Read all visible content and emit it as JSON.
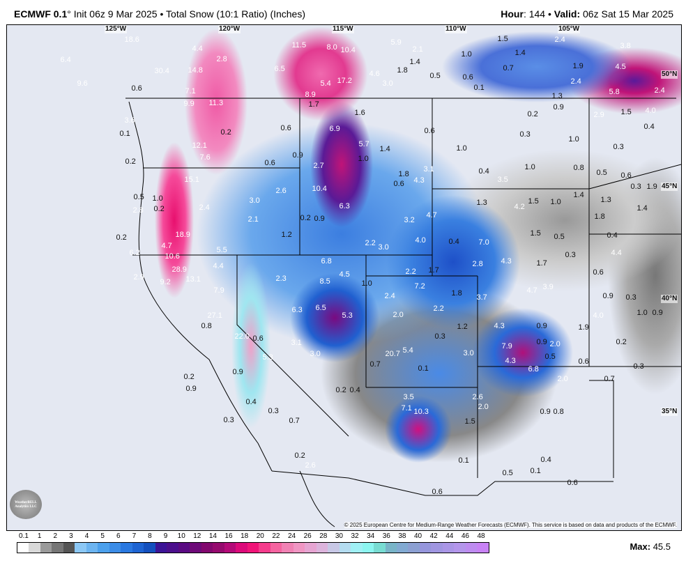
{
  "header": {
    "model": "ECMWF 0.1",
    "degree": "°",
    "init": "Init 06z 9 Mar 2025",
    "bullet": "•",
    "product": "Total Snow (10:1 Ratio) (Inches)",
    "hour_label": "Hour",
    "hour_value": ": 144",
    "valid_label": "Valid:",
    "valid_value": " 06z Sat 15 Mar 2025"
  },
  "map": {
    "longitudes": [
      "125°W",
      "120°W",
      "115°W",
      "110°W",
      "105°W"
    ],
    "latitudes": [
      "50°N",
      "45°N",
      "40°N",
      "35°N"
    ],
    "labels": [
      "18.6",
      "6.4",
      "4.4",
      "2.8",
      "30.4",
      "14.8",
      "11.5",
      "8.0",
      "10.4",
      "6.5",
      "5.9",
      "2.1",
      "1.0",
      "1.5",
      "1.4",
      "2.4",
      "3.8",
      "4.6",
      "1.8",
      "1.4",
      "0.5",
      "0.6",
      "0.7",
      "1.9",
      "4.5",
      "0.1",
      "5.4",
      "17.2",
      "3.0",
      "2.4",
      "5.8",
      "2.4",
      "9.6",
      "0.6",
      "7.1",
      "8.9",
      "1.3",
      "0.9",
      "9.9",
      "11.3",
      "1.7",
      "1.6",
      "0.2",
      "2.9",
      "1.5",
      "4.0",
      "3.6",
      "0.6",
      "6.9",
      "0.6",
      "0.3",
      "0.4",
      "0.1",
      "0.2",
      "5.7",
      "1.4",
      "1.0",
      "1.0",
      "0.3",
      "12.1",
      "7.6",
      "0.9",
      "1.0",
      "0.2",
      "2.7",
      "0.6",
      "3.1",
      "0.4",
      "1.0",
      "0.8",
      "0.5",
      "0.6",
      "15.1",
      "1.8",
      "4.3",
      "0.6",
      "3.5",
      "0.3",
      "1.9",
      "2.6",
      "10.4",
      "0.5",
      "1.0",
      "3.0",
      "6.3",
      "1.3",
      "4.2",
      "1.5",
      "1.0",
      "1.4",
      "1.3",
      "2.8",
      "0.2",
      "2.4",
      "4.7",
      "1.4",
      "1.8",
      "2.1",
      "0.2",
      "0.9",
      "3.2",
      "1.2",
      "0.2",
      "18.9",
      "4.0",
      "0.4",
      "7.0",
      "1.5",
      "0.5",
      "0.4",
      "2.2",
      "3.0",
      "4.7",
      "6.2",
      "10.6",
      "5.5",
      "0.3",
      "4.4",
      "4.3",
      "1.7",
      "2.8",
      "6.8",
      "4.4",
      "28.9",
      "4.5",
      "2.2",
      "1.7",
      "0.6",
      "2.9",
      "9.2",
      "13.1",
      "2.3",
      "8.5",
      "1.0",
      "7.2",
      "4.7",
      "3.9",
      "7.9",
      "1.8",
      "3.7",
      "0.9",
      "0.3",
      "2.4",
      "2.2",
      "6.3",
      "6.5",
      "2.0",
      "5.3",
      "1.0",
      "0.9",
      "4.0",
      "27.1",
      "0.8",
      "4.3",
      "0.9",
      "1.2",
      "1.9",
      "0.3",
      "22.0",
      "0.6",
      "3.1",
      "0.9",
      "2.0",
      "0.2",
      "7.9",
      "3.0",
      "20.7",
      "5.4",
      "3.0",
      "0.5",
      "4.3",
      "0.6",
      "0.3",
      "5.3",
      "0.7",
      "0.1",
      "6.8",
      "0.9",
      "2.0",
      "0.7",
      "0.2",
      "0.9",
      "0.2",
      "0.4",
      "3.5",
      "2.6",
      "2.0",
      "7.1",
      "10.3",
      "0.4",
      "0.3",
      "0.9",
      "0.8",
      "0.3",
      "0.7",
      "1.5",
      "0.2",
      "0.1",
      "0.4",
      "2.6",
      "0.1",
      "0.5",
      "0.6",
      "0.6"
    ],
    "copyright": "© 2025 European Centre for Medium-Range Weather Forecasts (ECMWF). This service is based on data and products of the ECMWF.",
    "logo_text": "WeatherBELL Analytics LLC"
  },
  "legend": {
    "ticks": [
      "0.1",
      "1",
      "2",
      "3",
      "4",
      "5",
      "6",
      "7",
      "8",
      "9",
      "10",
      "12",
      "14",
      "16",
      "18",
      "20",
      "22",
      "24",
      "26",
      "28",
      "30",
      "32",
      "34",
      "36",
      "38",
      "40",
      "42",
      "44",
      "46",
      "48"
    ],
    "colors": [
      "#ffffff",
      "#d9d9d9",
      "#9a9a9a",
      "#767676",
      "#555555",
      "#8cc8f5",
      "#6cb4f0",
      "#4ca0ec",
      "#3c8ce6",
      "#2a78e0",
      "#1e64d2",
      "#1450be",
      "#3c1496",
      "#4b0f8c",
      "#5a0a82",
      "#6e0a78",
      "#82086e",
      "#960a6e",
      "#b40a78",
      "#dc0a7a",
      "#f01478",
      "#f53c8c",
      "#f564a0",
      "#f082b4",
      "#f096c3",
      "#e6a5d2",
      "#dcb4dc",
      "#c8c8e6",
      "#b4dcf0",
      "#a0f0f5",
      "#8cf5f0",
      "#78dcd2",
      "#78b4c8",
      "#82aad2",
      "#8ca0d2",
      "#9696dc",
      "#a096e1",
      "#aa96e6",
      "#b496eb",
      "#be8cf0",
      "#c882f5"
    ],
    "max_label": "Max:",
    "max_value": "45.5"
  }
}
